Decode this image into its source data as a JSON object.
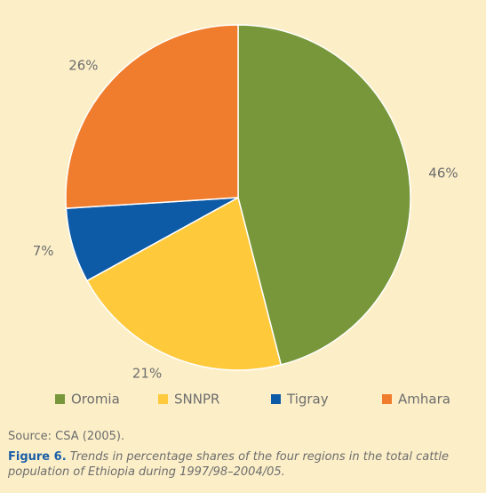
{
  "chart_data": {
    "type": "pie",
    "categories": [
      "Oromia",
      "SNNPR",
      "Tigray",
      "Amhara"
    ],
    "values": [
      46,
      21,
      7,
      26
    ],
    "value_labels": [
      "46%",
      "21%",
      "7%",
      "26%"
    ],
    "colors": [
      "#77973a",
      "#fec93b",
      "#0d5aa7",
      "#f07c2d"
    ]
  },
  "source": "Source: CSA (2005).",
  "caption": {
    "label": "Figure 6.",
    "text": "Trends in percentage shares of the four regions in the total cattle population of Ethiopia during 1997/98–2004/05."
  }
}
